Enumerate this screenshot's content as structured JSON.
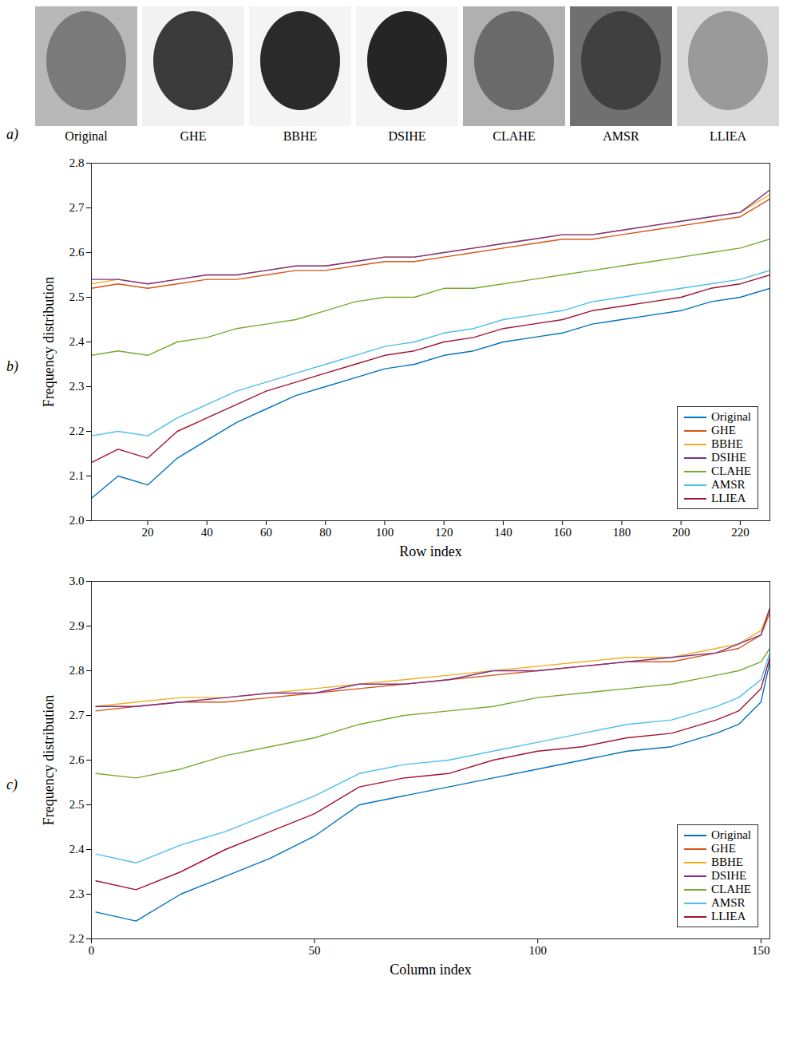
{
  "figure": {
    "panel_a": {
      "panel": "a)",
      "images": [
        "Original",
        "GHE",
        "BBHE",
        "DSIHE",
        "CLAHE",
        "AMSR",
        "LLIEA"
      ]
    }
  },
  "chart_data": [
    {
      "type": "line",
      "panel": "b)",
      "xlabel": "Row index",
      "ylabel": "Frequency distribution",
      "xlim": [
        1,
        230
      ],
      "xticks": [
        20,
        40,
        60,
        80,
        100,
        120,
        140,
        160,
        180,
        200,
        220
      ],
      "ylim": [
        2.0,
        2.8
      ],
      "yticks": [
        {
          "value": 2.0,
          "label": "2.0"
        },
        2.1,
        2.2,
        2.3,
        2.4,
        2.5,
        2.6,
        2.7,
        2.8
      ],
      "legend": "lower right",
      "x": [
        1,
        10,
        20,
        30,
        40,
        50,
        60,
        70,
        80,
        90,
        100,
        110,
        120,
        130,
        140,
        150,
        160,
        170,
        180,
        190,
        200,
        210,
        220,
        230
      ],
      "series": [
        {
          "name": "Original",
          "color": "#0072BD",
          "values": [
            2.05,
            2.1,
            2.08,
            2.14,
            2.18,
            2.22,
            2.25,
            2.28,
            2.3,
            2.32,
            2.34,
            2.35,
            2.37,
            2.38,
            2.4,
            2.41,
            2.42,
            2.44,
            2.45,
            2.46,
            2.47,
            2.49,
            2.5,
            2.52
          ]
        },
        {
          "name": "GHE",
          "color": "#D95319",
          "values": [
            2.52,
            2.53,
            2.52,
            2.53,
            2.54,
            2.54,
            2.55,
            2.56,
            2.56,
            2.57,
            2.58,
            2.58,
            2.59,
            2.6,
            2.61,
            2.62,
            2.63,
            2.63,
            2.64,
            2.65,
            2.66,
            2.67,
            2.68,
            2.72
          ]
        },
        {
          "name": "BBHE",
          "color": "#EDB120",
          "values": [
            2.53,
            2.54,
            2.53,
            2.54,
            2.55,
            2.55,
            2.56,
            2.57,
            2.57,
            2.58,
            2.59,
            2.59,
            2.6,
            2.61,
            2.62,
            2.63,
            2.64,
            2.64,
            2.65,
            2.66,
            2.67,
            2.68,
            2.69,
            2.73
          ]
        },
        {
          "name": "DSIHE",
          "color": "#7E2F8E",
          "values": [
            2.54,
            2.54,
            2.53,
            2.54,
            2.55,
            2.55,
            2.56,
            2.57,
            2.57,
            2.58,
            2.59,
            2.59,
            2.6,
            2.61,
            2.62,
            2.63,
            2.64,
            2.64,
            2.65,
            2.66,
            2.67,
            2.68,
            2.69,
            2.74
          ]
        },
        {
          "name": "CLAHE",
          "color": "#77AC30",
          "values": [
            2.37,
            2.38,
            2.37,
            2.4,
            2.41,
            2.43,
            2.44,
            2.45,
            2.47,
            2.49,
            2.5,
            2.5,
            2.52,
            2.52,
            2.53,
            2.54,
            2.55,
            2.56,
            2.57,
            2.58,
            2.59,
            2.6,
            2.61,
            2.63
          ]
        },
        {
          "name": "AMSR",
          "color": "#4DBEEE",
          "values": [
            2.19,
            2.2,
            2.19,
            2.23,
            2.26,
            2.29,
            2.31,
            2.33,
            2.35,
            2.37,
            2.39,
            2.4,
            2.42,
            2.43,
            2.45,
            2.46,
            2.47,
            2.49,
            2.5,
            2.51,
            2.52,
            2.53,
            2.54,
            2.56
          ]
        },
        {
          "name": "LLIEA",
          "color": "#A2142F",
          "values": [
            2.13,
            2.16,
            2.14,
            2.2,
            2.23,
            2.26,
            2.29,
            2.31,
            2.33,
            2.35,
            2.37,
            2.38,
            2.4,
            2.41,
            2.43,
            2.44,
            2.45,
            2.47,
            2.48,
            2.49,
            2.5,
            2.52,
            2.53,
            2.55
          ]
        }
      ]
    },
    {
      "type": "line",
      "panel": "c)",
      "xlabel": "Column index",
      "ylabel": "Frequency distribution",
      "xlim": [
        0,
        152
      ],
      "xticks": [
        0,
        50,
        100,
        150
      ],
      "ylim": [
        2.2,
        3.0
      ],
      "yticks": [
        2.2,
        2.3,
        2.4,
        2.5,
        2.6,
        2.7,
        2.8,
        2.9,
        {
          "value": 3.0,
          "label": "3.0"
        }
      ],
      "legend": "lower right",
      "x": [
        1,
        10,
        20,
        30,
        40,
        50,
        60,
        70,
        80,
        90,
        100,
        110,
        120,
        130,
        140,
        145,
        150,
        152
      ],
      "series": [
        {
          "name": "Original",
          "color": "#0072BD",
          "values": [
            2.26,
            2.24,
            2.3,
            2.34,
            2.38,
            2.43,
            2.5,
            2.52,
            2.54,
            2.56,
            2.58,
            2.6,
            2.62,
            2.63,
            2.66,
            2.68,
            2.73,
            2.82
          ]
        },
        {
          "name": "GHE",
          "color": "#D95319",
          "values": [
            2.71,
            2.72,
            2.73,
            2.73,
            2.74,
            2.75,
            2.76,
            2.77,
            2.78,
            2.79,
            2.8,
            2.81,
            2.82,
            2.82,
            2.84,
            2.85,
            2.88,
            2.93
          ]
        },
        {
          "name": "BBHE",
          "color": "#EDB120",
          "values": [
            2.72,
            2.73,
            2.74,
            2.74,
            2.75,
            2.76,
            2.77,
            2.78,
            2.79,
            2.8,
            2.81,
            2.82,
            2.83,
            2.83,
            2.85,
            2.86,
            2.89,
            2.94
          ]
        },
        {
          "name": "DSIHE",
          "color": "#7E2F8E",
          "values": [
            2.72,
            2.72,
            2.73,
            2.74,
            2.75,
            2.75,
            2.77,
            2.77,
            2.78,
            2.8,
            2.8,
            2.81,
            2.82,
            2.83,
            2.84,
            2.86,
            2.88,
            2.94
          ]
        },
        {
          "name": "CLAHE",
          "color": "#77AC30",
          "values": [
            2.57,
            2.56,
            2.58,
            2.61,
            2.63,
            2.65,
            2.68,
            2.7,
            2.71,
            2.72,
            2.74,
            2.75,
            2.76,
            2.77,
            2.79,
            2.8,
            2.82,
            2.85
          ]
        },
        {
          "name": "AMSR",
          "color": "#4DBEEE",
          "values": [
            2.39,
            2.37,
            2.41,
            2.44,
            2.48,
            2.52,
            2.57,
            2.59,
            2.6,
            2.62,
            2.64,
            2.66,
            2.68,
            2.69,
            2.72,
            2.74,
            2.78,
            2.84
          ]
        },
        {
          "name": "LLIEA",
          "color": "#A2142F",
          "values": [
            2.33,
            2.31,
            2.35,
            2.4,
            2.44,
            2.48,
            2.54,
            2.56,
            2.57,
            2.6,
            2.62,
            2.63,
            2.65,
            2.66,
            2.69,
            2.71,
            2.76,
            2.83
          ]
        }
      ]
    }
  ]
}
